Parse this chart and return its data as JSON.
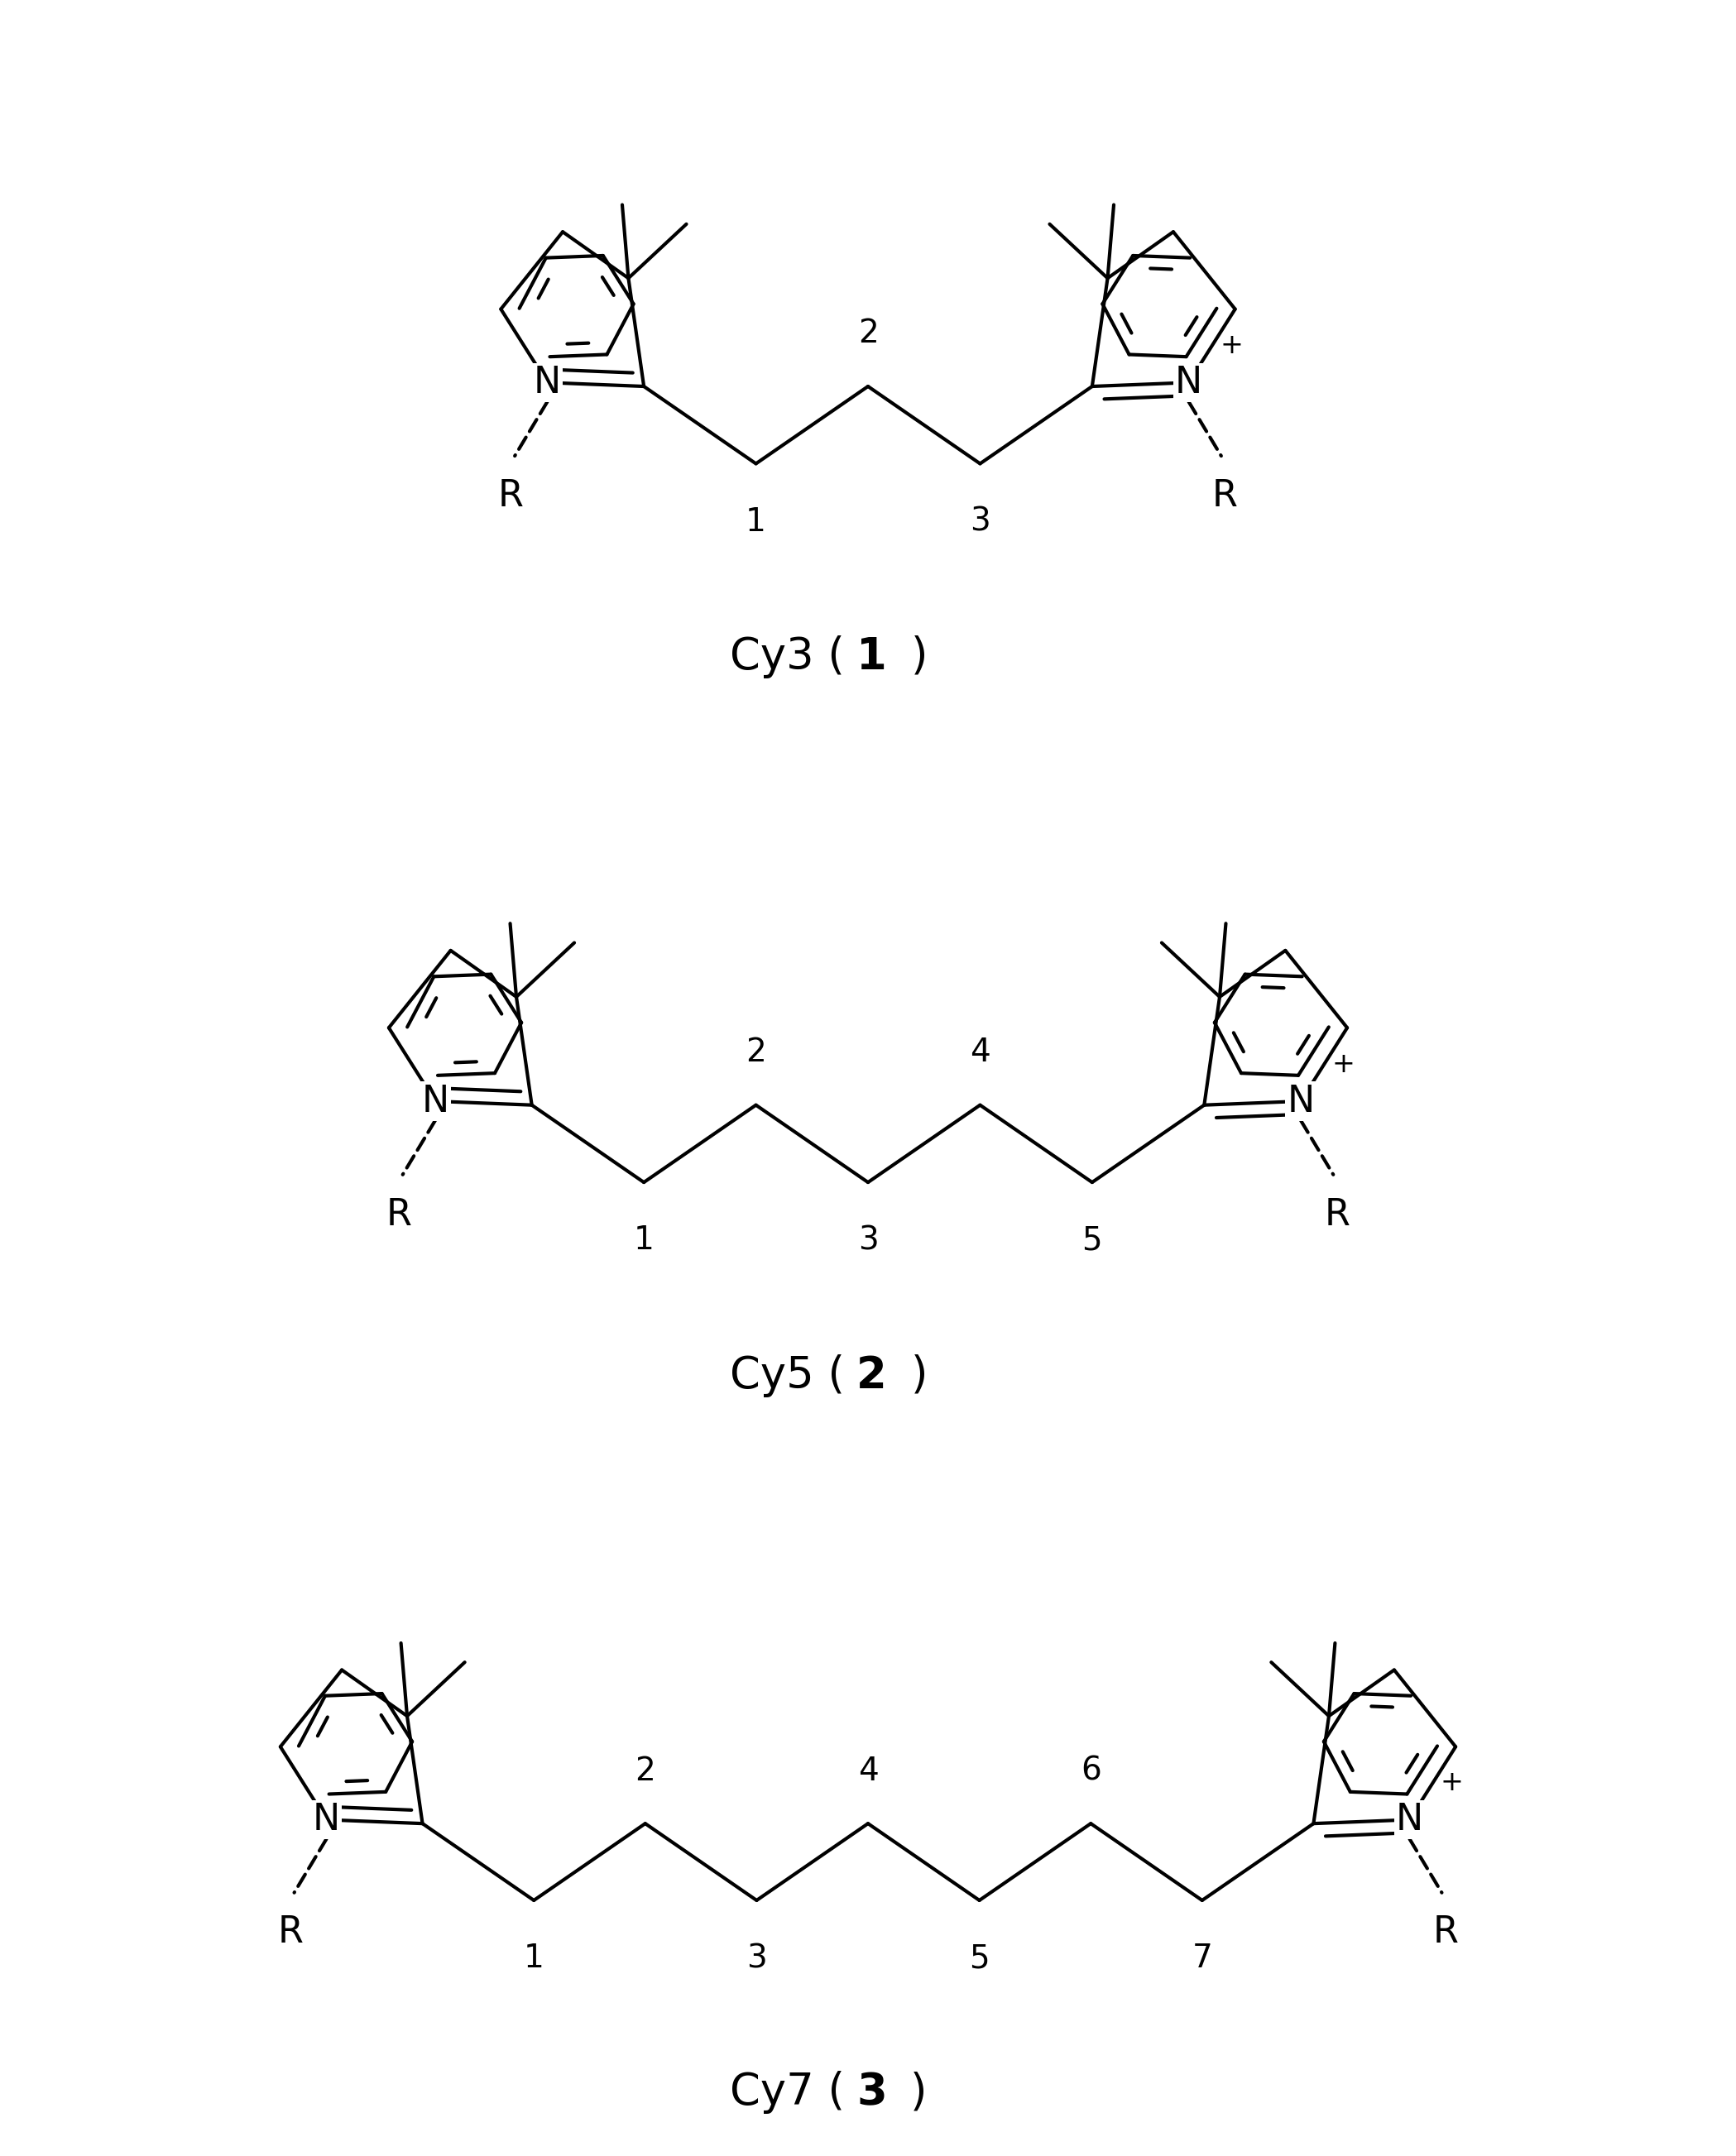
{
  "background_color": "#ffffff",
  "line_color": "#000000",
  "line_width": 3.0,
  "font_size_atom": 32,
  "font_size_number": 28,
  "font_size_caption": 38,
  "molecules": [
    {
      "name": "Cy3",
      "number": "1",
      "n_chain": 3,
      "chain_labels": [
        "1",
        "2",
        "3"
      ]
    },
    {
      "name": "Cy5",
      "number": "2",
      "n_chain": 5,
      "chain_labels": [
        "1",
        "2",
        "3",
        "4",
        "5"
      ]
    },
    {
      "name": "Cy7",
      "number": "3",
      "n_chain": 7,
      "chain_labels": [
        "1",
        "2",
        "3",
        "4",
        "5",
        "6",
        "7"
      ]
    }
  ]
}
